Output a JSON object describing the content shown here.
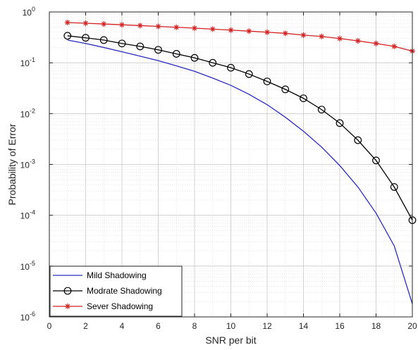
{
  "chart_data": {
    "type": "line",
    "xlabel": "SNR per bit",
    "ylabel": "Probability of Error",
    "xlim": [
      0,
      20
    ],
    "ylim": [
      1e-06,
      1
    ],
    "yscale": "log",
    "grid": true,
    "minor_grid": true,
    "legend_position": "bottom-left",
    "x_ticks": [
      0,
      2,
      4,
      6,
      8,
      10,
      12,
      14,
      16,
      18,
      20
    ],
    "y_tick_exponents": [
      -6,
      -5,
      -4,
      -3,
      -2,
      -1,
      0
    ],
    "y_tick_base": "10",
    "x": [
      1,
      2,
      3,
      4,
      5,
      6,
      7,
      8,
      9,
      10,
      11,
      12,
      13,
      14,
      15,
      16,
      17,
      18,
      19,
      20
    ],
    "series": [
      {
        "name": "Mild Shadowing",
        "color": "#2b2bbf",
        "marker": "none",
        "values": [
          0.28,
          0.24,
          0.2,
          0.165,
          0.135,
          0.11,
          0.087,
          0.068,
          0.05,
          0.036,
          0.024,
          0.015,
          0.0085,
          0.0045,
          0.0022,
          0.00095,
          0.00036,
          0.00011,
          2.5e-05,
          1.8e-06
        ]
      },
      {
        "name": "Modrate Shadowing",
        "color": "#000000",
        "marker": "circle",
        "values": [
          0.34,
          0.31,
          0.28,
          0.24,
          0.21,
          0.18,
          0.15,
          0.125,
          0.1,
          0.08,
          0.06,
          0.043,
          0.03,
          0.02,
          0.012,
          0.0065,
          0.003,
          0.0012,
          0.00036,
          8e-05
        ]
      },
      {
        "name": "Sever Shadowing",
        "color": "#d42020",
        "marker": "star",
        "values": [
          0.62,
          0.6,
          0.58,
          0.56,
          0.54,
          0.52,
          0.5,
          0.48,
          0.46,
          0.44,
          0.42,
          0.4,
          0.38,
          0.35,
          0.33,
          0.3,
          0.27,
          0.24,
          0.21,
          0.17
        ]
      }
    ]
  }
}
